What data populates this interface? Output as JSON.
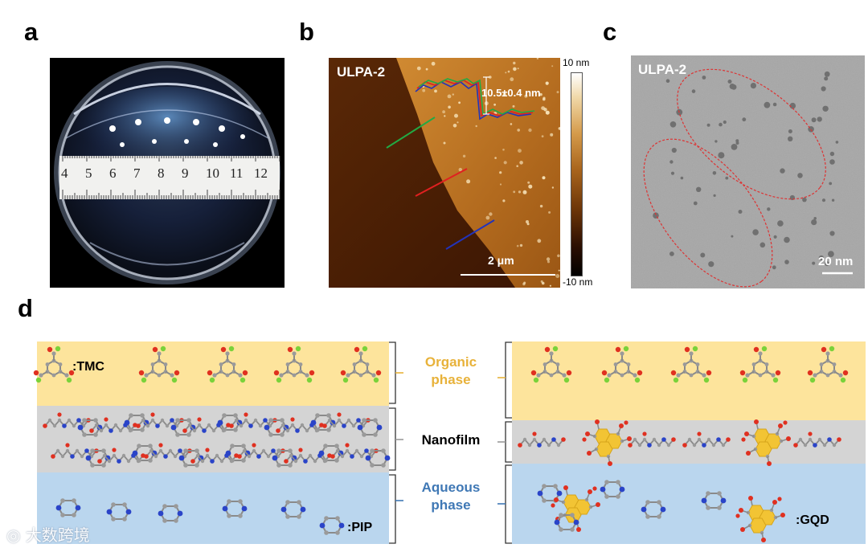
{
  "panel_labels": {
    "a": "a",
    "b": "b",
    "c": "c",
    "d": "d"
  },
  "panel_a": {
    "ruler_numbers": [
      "4",
      "5",
      "6",
      "7",
      "8",
      "9",
      "10",
      "11",
      "12"
    ]
  },
  "panel_b": {
    "sample": "ULPA-2",
    "height_annotation": "10.5±0.4 nm",
    "colorbar_max": "10 nm",
    "colorbar_min": "-10 nm",
    "scalebar": "2 μm",
    "colors": {
      "green": "#22aa44",
      "red": "#e02020",
      "blue": "#2233bb"
    }
  },
  "panel_c": {
    "sample": "ULPA-2",
    "scalebar": "20 nm"
  },
  "panel_d": {
    "labels": {
      "tmc": ":TMC",
      "pip": ":PIP",
      "gqd": ":GQD",
      "organic_phase": "Organic\nphase",
      "nanofilm": "Nanofilm",
      "aqueous_phase": "Aqueous\nphase"
    },
    "colors": {
      "organic": "#fde49c",
      "nanofilm": "#d4d4d4",
      "aqueous": "#bad6ee",
      "organic_text": "#e8b23a",
      "aqueous_text": "#3f78b5",
      "gqd": "#f2c434"
    }
  },
  "watermark": "大数跨境"
}
